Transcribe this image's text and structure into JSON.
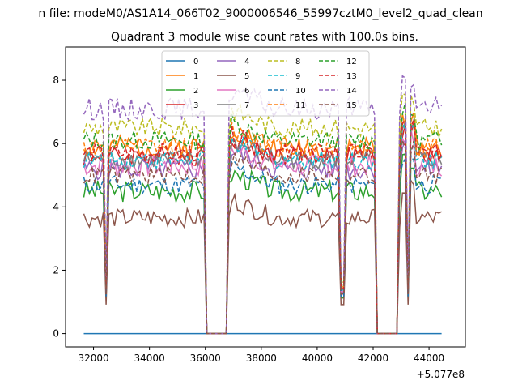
{
  "figure": {
    "suptitle": "n file: modeM0/AS1A14_066T02_9000006546_55997cztM0_level2_quad_clean",
    "offset_label": "+5.077e8"
  },
  "chart_data": {
    "type": "line",
    "title": "Quadrant 3 module wise count rates with 100.0s bins.",
    "xlabel": "",
    "ylabel": "",
    "xlim": [
      31000,
      45300
    ],
    "ylim": [
      -0.42,
      9.05
    ],
    "x_offset": 507700000,
    "xticks": [
      32000,
      34000,
      36000,
      38000,
      40000,
      42000,
      44000
    ],
    "xtick_labels": [
      "32000",
      "34000",
      "36000",
      "38000",
      "40000",
      "42000",
      "44000"
    ],
    "yticks": [
      0,
      2,
      4,
      6,
      8
    ],
    "ytick_labels": [
      "0",
      "2",
      "4",
      "6",
      "8"
    ],
    "x_start": 31650,
    "bin": 100,
    "gti": {
      "gaps": [
        [
          35950,
          36850
        ],
        [
          42050,
          42950
        ]
      ],
      "dips": [
        32450,
        40900,
        43250
      ]
    },
    "legend": {
      "placement": "top-center",
      "ncol": 4
    },
    "series": [
      {
        "name": "0",
        "color": "#1f77b4",
        "style": "solid",
        "level": 0.0,
        "amp": 0.0
      },
      {
        "name": "1",
        "color": "#ff7f0e",
        "style": "solid",
        "level": 5.9,
        "amp": 0.35
      },
      {
        "name": "2",
        "color": "#2ca02c",
        "style": "solid",
        "level": 4.5,
        "amp": 0.35
      },
      {
        "name": "3",
        "color": "#d62728",
        "style": "solid",
        "level": 5.6,
        "amp": 0.3
      },
      {
        "name": "4",
        "color": "#9467bd",
        "style": "solid",
        "level": 5.2,
        "amp": 0.35
      },
      {
        "name": "5",
        "color": "#8c564b",
        "style": "solid",
        "level": 3.65,
        "amp": 0.3
      },
      {
        "name": "6",
        "color": "#e377c2",
        "style": "solid",
        "level": 5.3,
        "amp": 0.35
      },
      {
        "name": "7",
        "color": "#7f7f7f",
        "style": "solid",
        "level": 5.5,
        "amp": 0.3
      },
      {
        "name": "8",
        "color": "#bcbd22",
        "style": "dashed",
        "level": 6.5,
        "amp": 0.3
      },
      {
        "name": "9",
        "color": "#17becf",
        "style": "dashed",
        "level": 5.5,
        "amp": 0.3
      },
      {
        "name": "10",
        "color": "#1f77b4",
        "style": "dashed",
        "level": 4.7,
        "amp": 0.3
      },
      {
        "name": "11",
        "color": "#ff7f0e",
        "style": "dashed",
        "level": 5.9,
        "amp": 0.3
      },
      {
        "name": "12",
        "color": "#2ca02c",
        "style": "dashed",
        "level": 6.1,
        "amp": 0.3
      },
      {
        "name": "13",
        "color": "#d62728",
        "style": "dashed",
        "level": 5.7,
        "amp": 0.3
      },
      {
        "name": "14",
        "color": "#9467bd",
        "style": "dashed",
        "level": 7.1,
        "amp": 0.35
      },
      {
        "name": "15",
        "color": "#8c564b",
        "style": "dashed",
        "level": 5.0,
        "amp": 0.3
      }
    ]
  }
}
